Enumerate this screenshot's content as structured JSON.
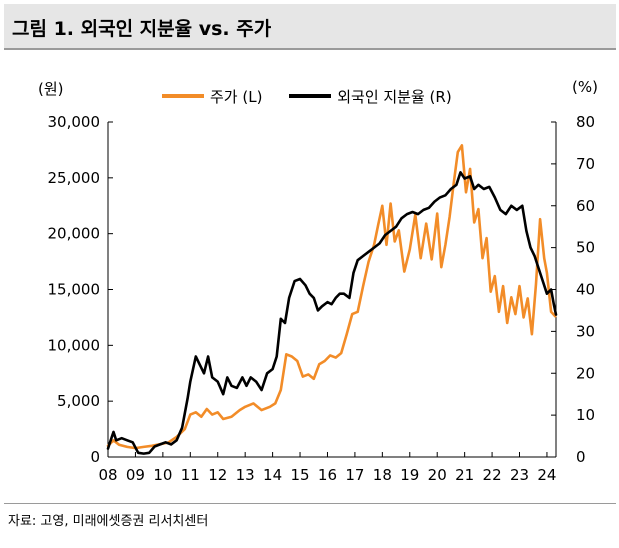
{
  "figure": {
    "title": "그림 1. 외국인 지분율 vs. 주가",
    "source": "자료: 고영, 미래에셋증권 리서치센터"
  },
  "chart_data": {
    "type": "line",
    "title": "그림 1. 외국인 지분율 vs. 주가",
    "xlabel": "",
    "ylabel_left": "(원)",
    "ylabel_right": "(%)",
    "x_ticks": [
      "08",
      "09",
      "10",
      "11",
      "12",
      "13",
      "14",
      "15",
      "16",
      "17",
      "18",
      "19",
      "20",
      "21",
      "22",
      "23",
      "24"
    ],
    "x_range": [
      2008.0,
      2024.33
    ],
    "ylim_left": [
      0,
      30000
    ],
    "ylim_right": [
      0,
      80
    ],
    "y_ticks_left": [
      "0",
      "5,000",
      "10,000",
      "15,000",
      "20,000",
      "25,000",
      "30,000"
    ],
    "y_ticks_right": [
      "0",
      "10",
      "20",
      "30",
      "40",
      "50",
      "60",
      "70",
      "80"
    ],
    "y_tick_values_left": [
      0,
      5000,
      10000,
      15000,
      20000,
      25000,
      30000
    ],
    "y_tick_values_right": [
      0,
      10,
      20,
      30,
      40,
      50,
      60,
      70,
      80
    ],
    "legend": [
      "주가 (L)",
      "외국인 지분율 (R)"
    ],
    "colors": {
      "price": "#F28C28",
      "foreign": "#000000"
    },
    "series": [
      {
        "name": "주가 (L)",
        "axis": "left",
        "color": "#F28C28",
        "points": [
          [
            2008.0,
            1000
          ],
          [
            2008.2,
            1500
          ],
          [
            2008.4,
            1100
          ],
          [
            2008.7,
            900
          ],
          [
            2009.0,
            800
          ],
          [
            2009.3,
            900
          ],
          [
            2009.6,
            1000
          ],
          [
            2009.9,
            1150
          ],
          [
            2010.2,
            1300
          ],
          [
            2010.5,
            1800
          ],
          [
            2010.8,
            2500
          ],
          [
            2011.0,
            3800
          ],
          [
            2011.2,
            4000
          ],
          [
            2011.4,
            3600
          ],
          [
            2011.6,
            4300
          ],
          [
            2011.8,
            3800
          ],
          [
            2012.0,
            4000
          ],
          [
            2012.2,
            3400
          ],
          [
            2012.5,
            3600
          ],
          [
            2012.8,
            4200
          ],
          [
            2013.0,
            4500
          ],
          [
            2013.3,
            4800
          ],
          [
            2013.6,
            4200
          ],
          [
            2013.9,
            4500
          ],
          [
            2014.1,
            4800
          ],
          [
            2014.3,
            6000
          ],
          [
            2014.5,
            9200
          ],
          [
            2014.7,
            9000
          ],
          [
            2014.9,
            8600
          ],
          [
            2015.1,
            7200
          ],
          [
            2015.3,
            7400
          ],
          [
            2015.5,
            7000
          ],
          [
            2015.7,
            8300
          ],
          [
            2015.9,
            8600
          ],
          [
            2016.1,
            9100
          ],
          [
            2016.3,
            8900
          ],
          [
            2016.5,
            9300
          ],
          [
            2016.7,
            11000
          ],
          [
            2016.9,
            12800
          ],
          [
            2017.1,
            13000
          ],
          [
            2017.3,
            15300
          ],
          [
            2017.5,
            17500
          ],
          [
            2017.7,
            19000
          ],
          [
            2017.85,
            20800
          ],
          [
            2018.0,
            22500
          ],
          [
            2018.15,
            19000
          ],
          [
            2018.3,
            22700
          ],
          [
            2018.45,
            19300
          ],
          [
            2018.6,
            20300
          ],
          [
            2018.8,
            16600
          ],
          [
            2019.0,
            18600
          ],
          [
            2019.2,
            21700
          ],
          [
            2019.4,
            17800
          ],
          [
            2019.6,
            20900
          ],
          [
            2019.8,
            17700
          ],
          [
            2020.0,
            21800
          ],
          [
            2020.15,
            17000
          ],
          [
            2020.3,
            19000
          ],
          [
            2020.45,
            21500
          ],
          [
            2020.6,
            24500
          ],
          [
            2020.75,
            27300
          ],
          [
            2020.9,
            27900
          ],
          [
            2021.05,
            23700
          ],
          [
            2021.2,
            25800
          ],
          [
            2021.35,
            21000
          ],
          [
            2021.5,
            22200
          ],
          [
            2021.65,
            17800
          ],
          [
            2021.8,
            19600
          ],
          [
            2021.95,
            14800
          ],
          [
            2022.1,
            16200
          ],
          [
            2022.25,
            13000
          ],
          [
            2022.4,
            15300
          ],
          [
            2022.55,
            12000
          ],
          [
            2022.7,
            14300
          ],
          [
            2022.85,
            12800
          ],
          [
            2023.0,
            15300
          ],
          [
            2023.15,
            12500
          ],
          [
            2023.3,
            14200
          ],
          [
            2023.45,
            11000
          ],
          [
            2023.6,
            15500
          ],
          [
            2023.75,
            21300
          ],
          [
            2023.9,
            17800
          ],
          [
            2024.0,
            16500
          ],
          [
            2024.15,
            13000
          ],
          [
            2024.3,
            12600
          ]
        ]
      },
      {
        "name": "외국인 지분율 (R)",
        "axis": "right",
        "color": "#000000",
        "points": [
          [
            2008.0,
            2
          ],
          [
            2008.1,
            4
          ],
          [
            2008.2,
            6
          ],
          [
            2008.3,
            4
          ],
          [
            2008.5,
            4.5
          ],
          [
            2008.7,
            4
          ],
          [
            2008.9,
            3.5
          ],
          [
            2009.1,
            1
          ],
          [
            2009.3,
            0.8
          ],
          [
            2009.5,
            1
          ],
          [
            2009.7,
            2.5
          ],
          [
            2009.9,
            3
          ],
          [
            2010.1,
            3.5
          ],
          [
            2010.3,
            3
          ],
          [
            2010.5,
            4
          ],
          [
            2010.7,
            7
          ],
          [
            2010.9,
            14
          ],
          [
            2011.0,
            18
          ],
          [
            2011.2,
            24
          ],
          [
            2011.35,
            22
          ],
          [
            2011.5,
            20
          ],
          [
            2011.65,
            24
          ],
          [
            2011.8,
            19
          ],
          [
            2012.0,
            18
          ],
          [
            2012.2,
            15
          ],
          [
            2012.35,
            19
          ],
          [
            2012.5,
            17
          ],
          [
            2012.7,
            16.5
          ],
          [
            2012.9,
            19
          ],
          [
            2013.05,
            17
          ],
          [
            2013.2,
            19
          ],
          [
            2013.4,
            18
          ],
          [
            2013.6,
            16
          ],
          [
            2013.8,
            20
          ],
          [
            2014.0,
            21
          ],
          [
            2014.15,
            24
          ],
          [
            2014.3,
            33
          ],
          [
            2014.45,
            32
          ],
          [
            2014.6,
            38
          ],
          [
            2014.8,
            42
          ],
          [
            2015.0,
            42.5
          ],
          [
            2015.2,
            41
          ],
          [
            2015.35,
            39
          ],
          [
            2015.5,
            38
          ],
          [
            2015.65,
            35
          ],
          [
            2015.8,
            36
          ],
          [
            2016.0,
            37
          ],
          [
            2016.15,
            36.5
          ],
          [
            2016.3,
            38
          ],
          [
            2016.45,
            39
          ],
          [
            2016.6,
            39
          ],
          [
            2016.8,
            38
          ],
          [
            2016.95,
            44
          ],
          [
            2017.1,
            47
          ],
          [
            2017.3,
            48
          ],
          [
            2017.5,
            49
          ],
          [
            2017.7,
            50
          ],
          [
            2017.9,
            51
          ],
          [
            2018.1,
            53
          ],
          [
            2018.3,
            54
          ],
          [
            2018.5,
            55
          ],
          [
            2018.7,
            57
          ],
          [
            2018.9,
            58
          ],
          [
            2019.1,
            58.5
          ],
          [
            2019.3,
            58
          ],
          [
            2019.5,
            59
          ],
          [
            2019.7,
            59.5
          ],
          [
            2019.9,
            61
          ],
          [
            2020.1,
            62
          ],
          [
            2020.3,
            62.5
          ],
          [
            2020.5,
            64
          ],
          [
            2020.7,
            65
          ],
          [
            2020.85,
            68
          ],
          [
            2021.0,
            66.5
          ],
          [
            2021.2,
            67
          ],
          [
            2021.35,
            64
          ],
          [
            2021.5,
            65
          ],
          [
            2021.7,
            64
          ],
          [
            2021.9,
            64.5
          ],
          [
            2022.1,
            62
          ],
          [
            2022.3,
            59
          ],
          [
            2022.5,
            58
          ],
          [
            2022.7,
            60
          ],
          [
            2022.9,
            59
          ],
          [
            2023.1,
            60
          ],
          [
            2023.25,
            54
          ],
          [
            2023.4,
            50
          ],
          [
            2023.55,
            48
          ],
          [
            2023.7,
            45
          ],
          [
            2023.85,
            42
          ],
          [
            2024.0,
            39
          ],
          [
            2024.15,
            40
          ],
          [
            2024.25,
            36.5
          ],
          [
            2024.33,
            34
          ]
        ]
      }
    ]
  }
}
